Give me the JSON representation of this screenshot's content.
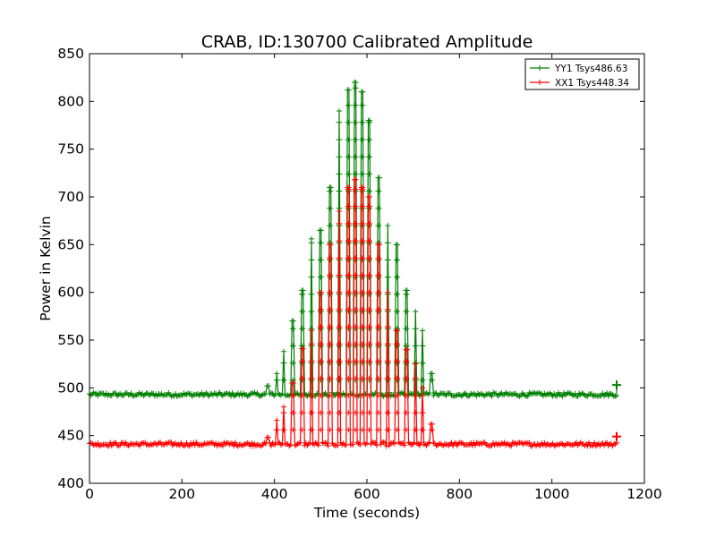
{
  "chart_data": {
    "type": "line",
    "title": "CRAB, ID:130700 Calibrated Amplitude",
    "xlabel": "Time (seconds)",
    "ylabel": "Power in Kelvin",
    "xlim": [
      0,
      1200
    ],
    "ylim": [
      400,
      850
    ],
    "xticks": [
      0,
      200,
      400,
      600,
      800,
      1000,
      1200
    ],
    "yticks": [
      400,
      450,
      500,
      550,
      600,
      650,
      700,
      750,
      800,
      850
    ],
    "grid": false,
    "legend_position": "top-right",
    "x_range_data": [
      0,
      1140
    ],
    "series": [
      {
        "name": "YY1 Tsys486.63",
        "color": "#008000",
        "marker": "+",
        "baseline": 493,
        "baseline_noise": 2,
        "end_point": {
          "x": 1140,
          "y": 503
        },
        "peaks": [
          {
            "x": 385,
            "y": 502
          },
          {
            "x": 405,
            "y": 515
          },
          {
            "x": 420,
            "y": 538
          },
          {
            "x": 440,
            "y": 570
          },
          {
            "x": 460,
            "y": 602
          },
          {
            "x": 480,
            "y": 656
          },
          {
            "x": 500,
            "y": 665
          },
          {
            "x": 520,
            "y": 710
          },
          {
            "x": 540,
            "y": 790
          },
          {
            "x": 560,
            "y": 812
          },
          {
            "x": 575,
            "y": 820
          },
          {
            "x": 590,
            "y": 810
          },
          {
            "x": 605,
            "y": 780
          },
          {
            "x": 625,
            "y": 720
          },
          {
            "x": 645,
            "y": 670
          },
          {
            "x": 665,
            "y": 650
          },
          {
            "x": 685,
            "y": 602
          },
          {
            "x": 705,
            "y": 580
          },
          {
            "x": 720,
            "y": 560
          },
          {
            "x": 740,
            "y": 515
          }
        ]
      },
      {
        "name": "XX1 Tsys448.34",
        "color": "#ff0000",
        "marker": "+",
        "baseline": 441,
        "baseline_noise": 2,
        "end_point": {
          "x": 1140,
          "y": 449
        },
        "peaks": [
          {
            "x": 385,
            "y": 448
          },
          {
            "x": 405,
            "y": 466
          },
          {
            "x": 420,
            "y": 480
          },
          {
            "x": 440,
            "y": 505
          },
          {
            "x": 460,
            "y": 541
          },
          {
            "x": 480,
            "y": 560
          },
          {
            "x": 500,
            "y": 600
          },
          {
            "x": 520,
            "y": 650
          },
          {
            "x": 540,
            "y": 685
          },
          {
            "x": 560,
            "y": 710
          },
          {
            "x": 575,
            "y": 718
          },
          {
            "x": 590,
            "y": 710
          },
          {
            "x": 605,
            "y": 700
          },
          {
            "x": 625,
            "y": 650
          },
          {
            "x": 645,
            "y": 600
          },
          {
            "x": 665,
            "y": 560
          },
          {
            "x": 685,
            "y": 540
          },
          {
            "x": 705,
            "y": 525
          },
          {
            "x": 720,
            "y": 500
          },
          {
            "x": 740,
            "y": 462
          }
        ]
      }
    ]
  }
}
